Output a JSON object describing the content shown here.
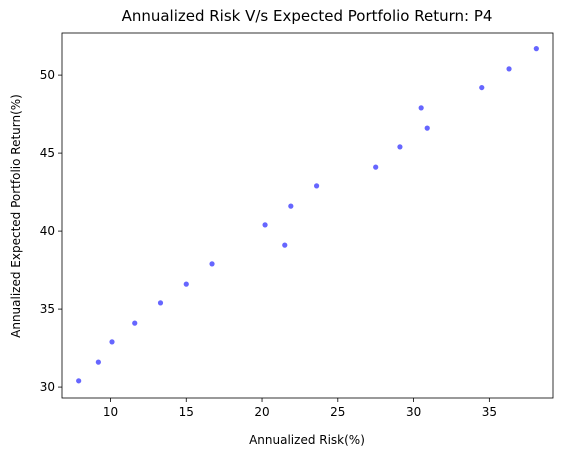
{
  "chart_data": {
    "type": "scatter",
    "title": "Annualized Risk V/s Expected Portfolio Return: P4",
    "xlabel": "Annualized Risk(%)",
    "ylabel": "Annualized Expected Portfolio Return(%)",
    "xlim": [
      6.8,
      39.2
    ],
    "ylim": [
      29.3,
      52.7
    ],
    "xticks": [
      10,
      15,
      20,
      25,
      30,
      35
    ],
    "yticks": [
      30,
      35,
      40,
      45,
      50
    ],
    "grid": false,
    "point_color": "#0000ff",
    "point_opacity": 0.6,
    "points": [
      {
        "x": 7.9,
        "y": 30.4
      },
      {
        "x": 9.2,
        "y": 31.6
      },
      {
        "x": 10.1,
        "y": 32.9
      },
      {
        "x": 11.6,
        "y": 34.1
      },
      {
        "x": 13.3,
        "y": 35.4
      },
      {
        "x": 15.0,
        "y": 36.6
      },
      {
        "x": 16.7,
        "y": 37.9
      },
      {
        "x": 20.2,
        "y": 40.4
      },
      {
        "x": 21.5,
        "y": 39.1
      },
      {
        "x": 21.9,
        "y": 41.6
      },
      {
        "x": 23.6,
        "y": 42.9
      },
      {
        "x": 27.5,
        "y": 44.1
      },
      {
        "x": 29.1,
        "y": 45.4
      },
      {
        "x": 30.5,
        "y": 47.9
      },
      {
        "x": 30.9,
        "y": 46.6
      },
      {
        "x": 34.5,
        "y": 49.2
      },
      {
        "x": 36.3,
        "y": 50.4
      },
      {
        "x": 38.1,
        "y": 51.7
      }
    ]
  }
}
